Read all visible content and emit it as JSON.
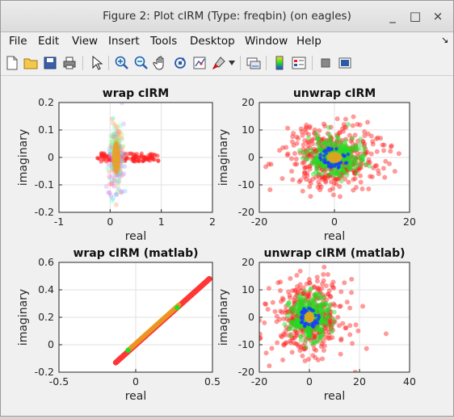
{
  "window": {
    "title": "Figure 2: Plot cIRM (Type: freqbin) (on eagles)"
  },
  "window_controls": {
    "minimize": "_",
    "maximize": "□",
    "close": "×"
  },
  "menu": [
    "File",
    "Edit",
    "View",
    "Insert",
    "Tools",
    "Desktop",
    "Window",
    "Help"
  ],
  "toolbar_icons": [
    "new-figure-icon",
    "open-file-icon",
    "save-icon",
    "print-icon",
    "pointer-icon",
    "zoom-in-icon",
    "zoom-out-icon",
    "pan-hand-icon",
    "rotate-3d-icon",
    "data-cursor-icon",
    "brush-icon",
    "link-plot-icon",
    "insert-colorbar-icon",
    "insert-legend-icon",
    "hide-plot-tools-icon",
    "show-plot-tools-icon"
  ],
  "colors": {
    "red": "#ff2020",
    "green": "#22dd22",
    "orange": "#e8a020",
    "blue": "#1a3cff"
  },
  "chart_data": [
    {
      "type": "scatter",
      "title": "wrap cIRM",
      "xlabel": "real",
      "ylabel": "imaginary",
      "xlim": [
        -1,
        2
      ],
      "ylim": [
        -0.2,
        0.2
      ],
      "xticks": [
        "-1",
        "0",
        "1",
        "2"
      ],
      "yticks": [
        "-0.2",
        "-0.1",
        "0",
        "0.1",
        "0.2"
      ],
      "grid": true,
      "series": [
        {
          "color": "red",
          "shape": "horizontal band",
          "x": [
            -0.25,
            0.95
          ],
          "y": [
            -0.015,
            0.015
          ]
        },
        {
          "color": "multicolor",
          "shape": "cloud",
          "center": [
            0.12,
            0.0
          ],
          "spread": [
            0.12,
            0.11
          ]
        },
        {
          "color": "orange",
          "shape": "blob",
          "center": [
            0.12,
            0.0
          ],
          "spread": [
            0.08,
            0.06
          ]
        }
      ]
    },
    {
      "type": "scatter",
      "title": "unwrap cIRM",
      "xlabel": "real",
      "ylabel": "imaginary",
      "xlim": [
        -20,
        20
      ],
      "ylim": [
        -20,
        20
      ],
      "xticks": [
        "-20",
        "0",
        "20"
      ],
      "yticks": [
        "-20",
        "-10",
        "0",
        "10",
        "20"
      ],
      "grid": true,
      "series": [
        {
          "color": "red",
          "shape": "cloud",
          "center": [
            0,
            0
          ],
          "spread": [
            12,
            11
          ]
        },
        {
          "color": "green",
          "shape": "cloud",
          "center": [
            0,
            0
          ],
          "spread": [
            6.5,
            6
          ]
        },
        {
          "color": "blue",
          "shape": "ring",
          "center": [
            0,
            0
          ],
          "spread": [
            3,
            3
          ]
        },
        {
          "color": "orange",
          "shape": "blob",
          "center": [
            0,
            0
          ],
          "spread": [
            2,
            2
          ]
        }
      ]
    },
    {
      "type": "scatter",
      "title": "wrap cIRM (matlab)",
      "xlabel": "real",
      "ylabel": "imaginary",
      "xlim": [
        -0.5,
        0.5
      ],
      "ylim": [
        -0.2,
        0.6
      ],
      "xticks": [
        "-0.5",
        "0",
        "0.5"
      ],
      "yticks": [
        "-0.2",
        "0",
        "0.2",
        "0.4",
        "0.6"
      ],
      "grid": true,
      "series": [
        {
          "color": "red",
          "shape": "line",
          "from": [
            -0.13,
            -0.13
          ],
          "to": [
            0.48,
            0.48
          ]
        },
        {
          "color": "orange",
          "shape": "line",
          "from": [
            -0.04,
            -0.03
          ],
          "to": [
            0.28,
            0.29
          ]
        },
        {
          "color": "green",
          "shape": "points",
          "x": [
            -0.05,
            0.27
          ],
          "y": [
            -0.04,
            0.27
          ]
        }
      ]
    },
    {
      "type": "scatter",
      "title": "unwrap cIRM (matlab)",
      "xlabel": "real",
      "ylabel": "imaginary",
      "xlim": [
        -20,
        40
      ],
      "ylim": [
        -20,
        20
      ],
      "xticks": [
        "-20",
        "0",
        "20",
        "40"
      ],
      "yticks": [
        "-20",
        "-10",
        "0",
        "10",
        "20"
      ],
      "grid": true,
      "series": [
        {
          "color": "red",
          "shape": "cloud",
          "center": [
            0,
            0
          ],
          "spread": [
            13,
            12
          ]
        },
        {
          "color": "green",
          "shape": "cloud",
          "center": [
            0,
            0
          ],
          "spread": [
            7,
            7
          ]
        },
        {
          "color": "blue",
          "shape": "ring",
          "center": [
            0,
            0
          ],
          "spread": [
            3,
            3
          ]
        },
        {
          "color": "orange",
          "shape": "blob",
          "center": [
            0,
            0
          ],
          "spread": [
            2,
            2
          ]
        }
      ]
    }
  ]
}
